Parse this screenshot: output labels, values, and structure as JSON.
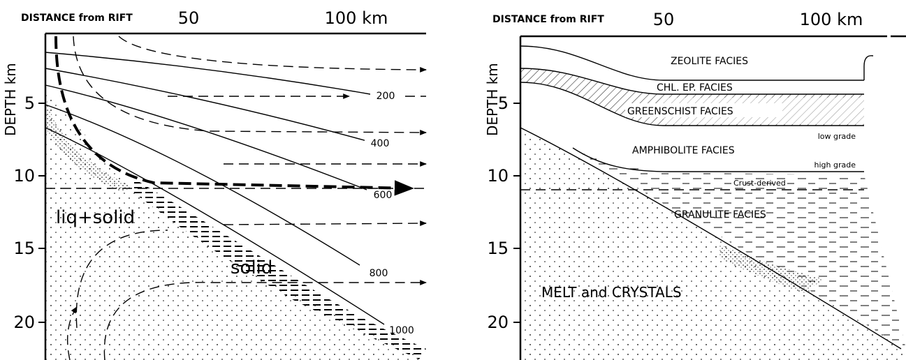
{
  "left_panel": {
    "x_axis_label": "DISTANCE from RIFT",
    "x_ticks": [
      50,
      "100 km"
    ],
    "y_axis_label": "DEPTH km",
    "y_ticks": [
      5,
      10,
      15,
      20
    ],
    "isotherm_labels": [
      200,
      400,
      600,
      800,
      1000
    ],
    "region_labels": [
      "liq+solid",
      "solid"
    ]
  },
  "right_panel": {
    "x_axis_label": "DISTANCE from RIFT",
    "x_ticks": [
      50,
      "100 km"
    ],
    "y_axis_label": "DEPTH km",
    "y_ticks": [
      5,
      10,
      15,
      20
    ],
    "facies_labels": [
      "ZEOLITE FACIES",
      "CHL. EP. FACIES",
      "GREENSCHIST FACIES",
      "low grade",
      "AMPHIBOLITE FACIES",
      "high grade",
      "Crust-derived",
      "GRANULITE FACIES",
      "MELT and CRYSTALS"
    ]
  }
}
